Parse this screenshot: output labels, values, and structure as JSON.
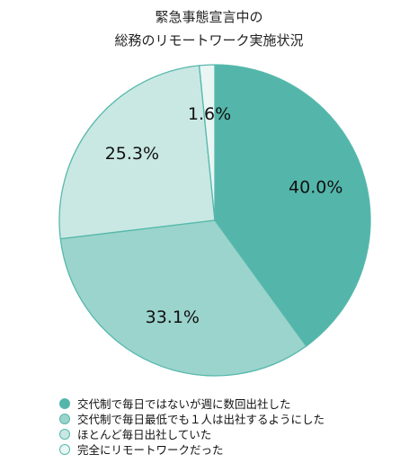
{
  "chart_data": {
    "type": "pie",
    "title_line1": "緊急事態宣言中の",
    "title_line2": "総務のリモートワーク実施状況",
    "slices": [
      {
        "label": "交代制で毎日ではないが週に数回出社した",
        "value": 40.0,
        "display": "40.0%",
        "color": "#54b6aa"
      },
      {
        "label": "交代制で毎日最低でも１人は出社するようにした",
        "value": 33.1,
        "display": "33.1%",
        "color": "#9bd4cc"
      },
      {
        "label": "ほとんど毎日出社していた",
        "value": 25.3,
        "display": "25.3%",
        "color": "#c9e8e3"
      },
      {
        "label": "完全にリモートワークだった",
        "value": 1.6,
        "display": "1.6%",
        "color": "#e9f6f4"
      }
    ],
    "legend_position": "bottom-left",
    "start": "top, clockwise"
  }
}
